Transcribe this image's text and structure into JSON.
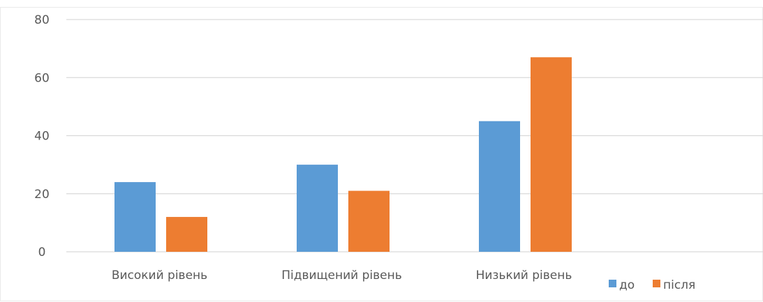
{
  "chart_data": {
    "type": "bar",
    "categories": [
      "Високий рівень",
      "Підвищений рівень",
      "Низький рівень"
    ],
    "series": [
      {
        "name": "до",
        "values": [
          24,
          30,
          45
        ],
        "color": "#5b9bd5"
      },
      {
        "name": "після",
        "values": [
          12,
          21,
          67
        ],
        "color": "#ed7d31"
      }
    ],
    "ylim": [
      0,
      80
    ],
    "yticks": [
      "0",
      "20",
      "40",
      "60",
      "80"
    ],
    "grid": true,
    "legend_position": "bottom-right",
    "gridline_color": "#d9d9d9",
    "text_color": "#595959"
  }
}
